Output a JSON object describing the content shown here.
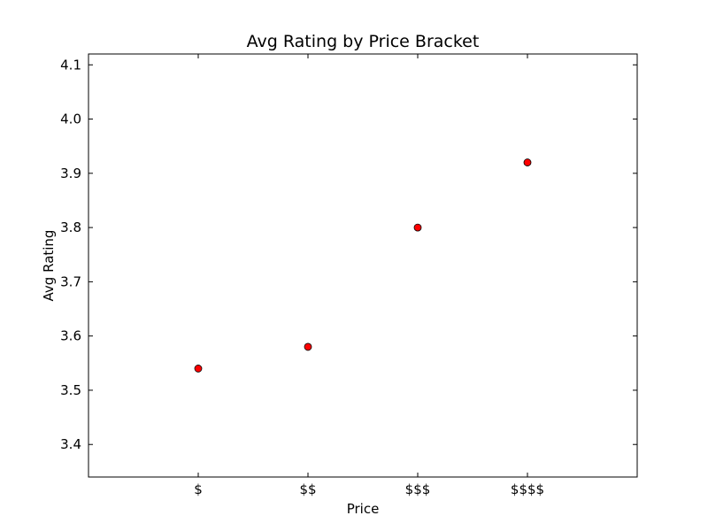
{
  "chart_data": {
    "type": "scatter",
    "title": "Avg Rating by Price Bracket",
    "xlabel": "Price",
    "ylabel": "Avg Rating",
    "categories": [
      "$",
      "$$",
      "$$$",
      "$$$$"
    ],
    "values": [
      3.54,
      3.58,
      3.8,
      3.92
    ],
    "ylim": [
      3.34,
      4.12
    ],
    "yticks": [
      "3.4",
      "3.5",
      "3.6",
      "3.7",
      "3.8",
      "3.9",
      "4.0",
      "4.1"
    ],
    "grid": false,
    "marker_color": "#ff0000",
    "marker_edge_color": "#000000"
  }
}
